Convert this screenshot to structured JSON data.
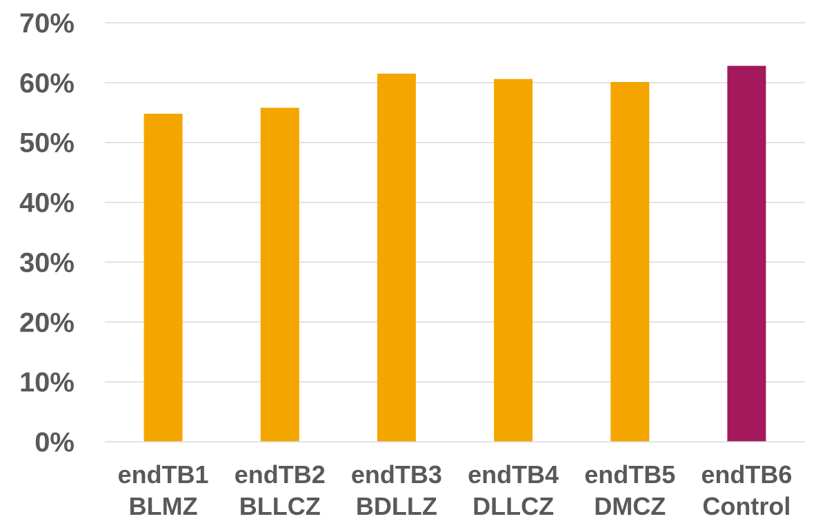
{
  "chart_data": {
    "type": "bar",
    "title": "",
    "xlabel": "",
    "ylabel": "",
    "ylim": [
      0,
      70
    ],
    "y_tick_values": [
      0,
      10,
      20,
      30,
      40,
      50,
      60,
      70
    ],
    "y_tick_labels": [
      "0%",
      "10%",
      "20%",
      "30%",
      "40%",
      "50%",
      "60%",
      "70%"
    ],
    "grid": true,
    "legend": "none",
    "categories": [
      [
        "endTB1",
        "BLMZ"
      ],
      [
        "endTB2",
        "BLLCZ"
      ],
      [
        "endTB3",
        "BDLLZ"
      ],
      [
        "endTB4",
        "DLLCZ"
      ],
      [
        "endTB5",
        "DMCZ"
      ],
      [
        "endTB6",
        "Control"
      ]
    ],
    "values": [
      54.8,
      55.8,
      61.5,
      60.6,
      60.1,
      62.8
    ],
    "bar_colors": [
      "#f5a500",
      "#f5a500",
      "#f5a500",
      "#f5a500",
      "#f5a500",
      "#a3195b"
    ]
  }
}
